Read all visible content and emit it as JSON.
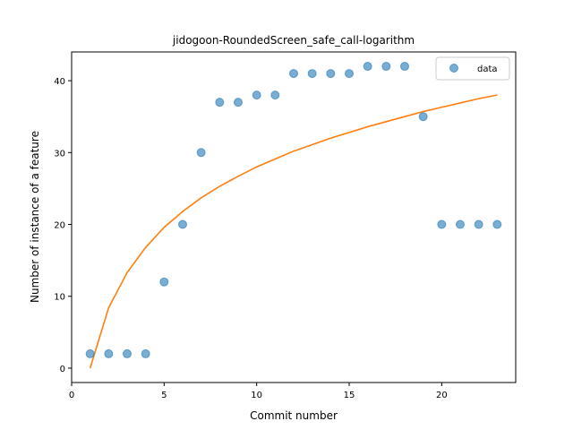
{
  "chart_data": {
    "type": "scatter",
    "title": "jidogoon-RoundedScreen_safe_call-logarithm",
    "xlabel": "Commit number",
    "ylabel": "Number of instance of a feature",
    "xlim": [
      0,
      24
    ],
    "ylim": [
      -2,
      44
    ],
    "xticks": [
      0,
      5,
      10,
      15,
      20
    ],
    "yticks": [
      0,
      10,
      20,
      30,
      40
    ],
    "grid": false,
    "legend_position": "top-right",
    "series": [
      {
        "name": "data",
        "kind": "scatter",
        "color": "#1f77b4",
        "x": [
          1,
          2,
          3,
          4,
          5,
          6,
          7,
          8,
          9,
          10,
          11,
          12,
          13,
          14,
          15,
          16,
          17,
          18,
          19,
          20,
          21,
          22,
          23
        ],
        "y": [
          2,
          2,
          2,
          2,
          12,
          20,
          30,
          37,
          37,
          38,
          38,
          41,
          41,
          41,
          41,
          42,
          42,
          42,
          35,
          20,
          20,
          20,
          20
        ]
      },
      {
        "kind": "line",
        "color": "#ff7f0e",
        "x": [
          1,
          2,
          3,
          4,
          5,
          6,
          7,
          8,
          9,
          10,
          11,
          12,
          13,
          14,
          15,
          16,
          17,
          18,
          19,
          20,
          21,
          22,
          23
        ],
        "y": [
          0.0,
          8.4,
          13.3,
          16.8,
          19.6,
          21.8,
          23.7,
          25.3,
          26.7,
          28.0,
          29.1,
          30.2,
          31.1,
          32.0,
          32.8,
          33.6,
          34.3,
          35.0,
          35.7,
          36.3,
          36.9,
          37.5,
          38.0
        ]
      }
    ]
  }
}
